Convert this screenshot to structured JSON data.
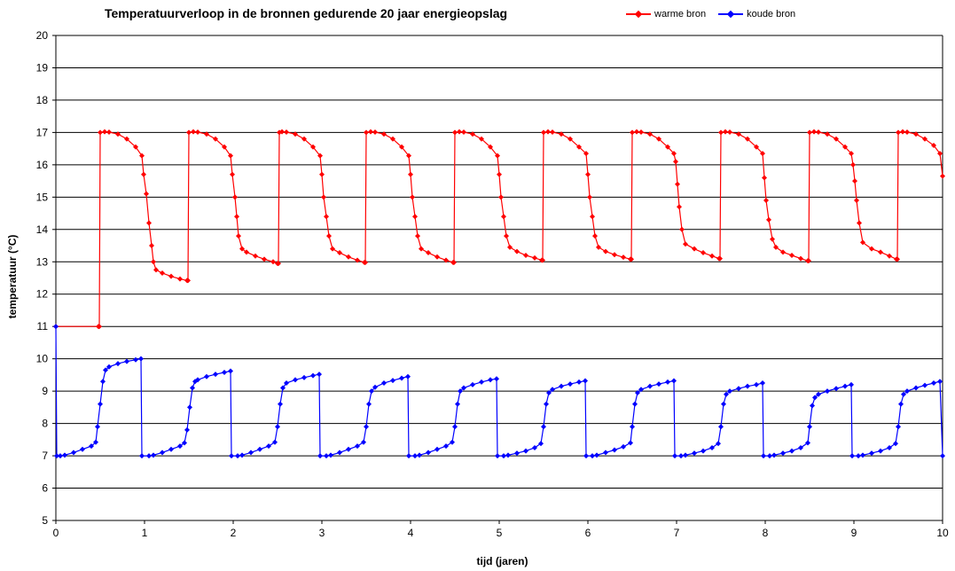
{
  "chart_data": {
    "type": "line",
    "title": "Temperatuurverloop in de bronnen  gedurende  20 jaar energieopslag",
    "xlabel": "tijd (jaren)",
    "ylabel": "temperatuur (°C)",
    "xlim": [
      0,
      10
    ],
    "ylim": [
      5,
      20
    ],
    "xticks": [
      "0",
      "1",
      "2",
      "3",
      "4",
      "5",
      "6",
      "7",
      "8",
      "9",
      "10"
    ],
    "yticks": [
      "5",
      "6",
      "7",
      "8",
      "9",
      "10",
      "11",
      "12",
      "13",
      "14",
      "15",
      "16",
      "17",
      "18",
      "19",
      "20"
    ],
    "grid": "horizontal",
    "legend_position": "top-right",
    "series": [
      {
        "name": "warme bron",
        "color": "#ff0000",
        "marker": "diamond",
        "points": [
          [
            0,
            11
          ],
          [
            0.48,
            11
          ],
          [
            0.49,
            11
          ],
          [
            0.5,
            17
          ],
          [
            0.55,
            17.02
          ],
          [
            0.6,
            17.01
          ],
          [
            0.7,
            16.95
          ],
          [
            0.8,
            16.8
          ],
          [
            0.9,
            16.55
          ],
          [
            0.97,
            16.28
          ],
          [
            0.99,
            15.7
          ],
          [
            1.02,
            15.1
          ],
          [
            1.05,
            14.2
          ],
          [
            1.08,
            13.5
          ],
          [
            1.1,
            13.0
          ],
          [
            1.13,
            12.75
          ],
          [
            1.2,
            12.65
          ],
          [
            1.3,
            12.55
          ],
          [
            1.4,
            12.47
          ],
          [
            1.48,
            12.42
          ],
          [
            1.49,
            12.42
          ],
          [
            1.5,
            17
          ],
          [
            1.55,
            17.02
          ],
          [
            1.6,
            17.01
          ],
          [
            1.7,
            16.95
          ],
          [
            1.8,
            16.8
          ],
          [
            1.9,
            16.55
          ],
          [
            1.97,
            16.28
          ],
          [
            1.99,
            15.7
          ],
          [
            2.02,
            15.0
          ],
          [
            2.04,
            14.4
          ],
          [
            2.06,
            13.8
          ],
          [
            2.1,
            13.4
          ],
          [
            2.15,
            13.3
          ],
          [
            2.25,
            13.18
          ],
          [
            2.35,
            13.08
          ],
          [
            2.45,
            13.0
          ],
          [
            2.5,
            12.95
          ],
          [
            2.51,
            12.95
          ],
          [
            2.52,
            17
          ],
          [
            2.55,
            17.02
          ],
          [
            2.6,
            17.01
          ],
          [
            2.7,
            16.95
          ],
          [
            2.8,
            16.8
          ],
          [
            2.9,
            16.55
          ],
          [
            2.98,
            16.28
          ],
          [
            3.0,
            15.7
          ],
          [
            3.02,
            15.0
          ],
          [
            3.05,
            14.4
          ],
          [
            3.08,
            13.8
          ],
          [
            3.12,
            13.4
          ],
          [
            3.2,
            13.28
          ],
          [
            3.3,
            13.15
          ],
          [
            3.4,
            13.05
          ],
          [
            3.48,
            12.98
          ],
          [
            3.49,
            12.98
          ],
          [
            3.5,
            17
          ],
          [
            3.55,
            17.02
          ],
          [
            3.6,
            17.01
          ],
          [
            3.7,
            16.95
          ],
          [
            3.8,
            16.8
          ],
          [
            3.9,
            16.55
          ],
          [
            3.98,
            16.28
          ],
          [
            4.0,
            15.7
          ],
          [
            4.02,
            15.0
          ],
          [
            4.05,
            14.4
          ],
          [
            4.08,
            13.8
          ],
          [
            4.12,
            13.4
          ],
          [
            4.2,
            13.28
          ],
          [
            4.3,
            13.15
          ],
          [
            4.4,
            13.05
          ],
          [
            4.48,
            12.98
          ],
          [
            4.49,
            12.98
          ],
          [
            4.5,
            17
          ],
          [
            4.55,
            17.02
          ],
          [
            4.6,
            17.01
          ],
          [
            4.7,
            16.95
          ],
          [
            4.8,
            16.8
          ],
          [
            4.9,
            16.55
          ],
          [
            4.98,
            16.28
          ],
          [
            5.0,
            15.7
          ],
          [
            5.02,
            15.0
          ],
          [
            5.05,
            14.4
          ],
          [
            5.08,
            13.8
          ],
          [
            5.12,
            13.45
          ],
          [
            5.2,
            13.32
          ],
          [
            5.3,
            13.2
          ],
          [
            5.4,
            13.12
          ],
          [
            5.48,
            13.05
          ],
          [
            5.49,
            13.05
          ],
          [
            5.5,
            17
          ],
          [
            5.55,
            17.02
          ],
          [
            5.6,
            17.01
          ],
          [
            5.7,
            16.95
          ],
          [
            5.8,
            16.8
          ],
          [
            5.9,
            16.55
          ],
          [
            5.98,
            16.35
          ],
          [
            6.0,
            15.7
          ],
          [
            6.02,
            15.0
          ],
          [
            6.05,
            14.4
          ],
          [
            6.08,
            13.8
          ],
          [
            6.12,
            13.45
          ],
          [
            6.2,
            13.32
          ],
          [
            6.3,
            13.22
          ],
          [
            6.4,
            13.14
          ],
          [
            6.48,
            13.08
          ],
          [
            6.49,
            13.08
          ],
          [
            6.5,
            17
          ],
          [
            6.55,
            17.02
          ],
          [
            6.6,
            17.01
          ],
          [
            6.7,
            16.95
          ],
          [
            6.8,
            16.8
          ],
          [
            6.9,
            16.55
          ],
          [
            6.97,
            16.35
          ],
          [
            6.99,
            16.1
          ],
          [
            7.01,
            15.4
          ],
          [
            7.03,
            14.7
          ],
          [
            7.06,
            14.0
          ],
          [
            7.1,
            13.55
          ],
          [
            7.2,
            13.4
          ],
          [
            7.3,
            13.28
          ],
          [
            7.4,
            13.18
          ],
          [
            7.48,
            13.1
          ],
          [
            7.49,
            13.1
          ],
          [
            7.5,
            17
          ],
          [
            7.55,
            17.02
          ],
          [
            7.6,
            17.01
          ],
          [
            7.7,
            16.95
          ],
          [
            7.8,
            16.8
          ],
          [
            7.9,
            16.55
          ],
          [
            7.97,
            16.35
          ],
          [
            7.99,
            15.6
          ],
          [
            8.01,
            14.9
          ],
          [
            8.04,
            14.3
          ],
          [
            8.08,
            13.7
          ],
          [
            8.12,
            13.45
          ],
          [
            8.2,
            13.3
          ],
          [
            8.3,
            13.2
          ],
          [
            8.4,
            13.1
          ],
          [
            8.48,
            13.03
          ],
          [
            8.49,
            13.03
          ],
          [
            8.5,
            17
          ],
          [
            8.55,
            17.02
          ],
          [
            8.6,
            17.01
          ],
          [
            8.7,
            16.95
          ],
          [
            8.8,
            16.8
          ],
          [
            8.9,
            16.55
          ],
          [
            8.97,
            16.35
          ],
          [
            8.99,
            16.0
          ],
          [
            9.01,
            15.5
          ],
          [
            9.03,
            14.9
          ],
          [
            9.06,
            14.2
          ],
          [
            9.1,
            13.6
          ],
          [
            9.2,
            13.4
          ],
          [
            9.3,
            13.3
          ],
          [
            9.4,
            13.18
          ],
          [
            9.48,
            13.08
          ],
          [
            9.49,
            13.08
          ],
          [
            9.5,
            17
          ],
          [
            9.55,
            17.02
          ],
          [
            9.6,
            17.01
          ],
          [
            9.7,
            16.95
          ],
          [
            9.8,
            16.8
          ],
          [
            9.9,
            16.6
          ],
          [
            9.97,
            16.35
          ],
          [
            10.0,
            15.65
          ]
        ]
      },
      {
        "name": "koude bron",
        "color": "#0000ff",
        "marker": "diamond",
        "points": [
          [
            0,
            11
          ],
          [
            0.01,
            7
          ],
          [
            0.05,
            7.0
          ],
          [
            0.1,
            7.02
          ],
          [
            0.2,
            7.1
          ],
          [
            0.3,
            7.2
          ],
          [
            0.4,
            7.3
          ],
          [
            0.45,
            7.42
          ],
          [
            0.47,
            7.9
          ],
          [
            0.5,
            8.6
          ],
          [
            0.53,
            9.3
          ],
          [
            0.56,
            9.65
          ],
          [
            0.6,
            9.75
          ],
          [
            0.7,
            9.85
          ],
          [
            0.8,
            9.92
          ],
          [
            0.9,
            9.97
          ],
          [
            0.96,
            10.0
          ],
          [
            0.97,
            7
          ],
          [
            1.05,
            7.0
          ],
          [
            1.1,
            7.02
          ],
          [
            1.2,
            7.1
          ],
          [
            1.3,
            7.2
          ],
          [
            1.4,
            7.3
          ],
          [
            1.45,
            7.4
          ],
          [
            1.48,
            7.8
          ],
          [
            1.51,
            8.5
          ],
          [
            1.54,
            9.1
          ],
          [
            1.57,
            9.3
          ],
          [
            1.6,
            9.35
          ],
          [
            1.7,
            9.45
          ],
          [
            1.8,
            9.52
          ],
          [
            1.9,
            9.58
          ],
          [
            1.97,
            9.62
          ],
          [
            1.98,
            7
          ],
          [
            2.05,
            7.0
          ],
          [
            2.1,
            7.02
          ],
          [
            2.2,
            7.1
          ],
          [
            2.3,
            7.2
          ],
          [
            2.4,
            7.3
          ],
          [
            2.47,
            7.42
          ],
          [
            2.5,
            7.9
          ],
          [
            2.53,
            8.6
          ],
          [
            2.56,
            9.1
          ],
          [
            2.6,
            9.25
          ],
          [
            2.7,
            9.35
          ],
          [
            2.8,
            9.42
          ],
          [
            2.9,
            9.48
          ],
          [
            2.97,
            9.52
          ],
          [
            2.98,
            7
          ],
          [
            3.05,
            7.0
          ],
          [
            3.1,
            7.02
          ],
          [
            3.2,
            7.1
          ],
          [
            3.3,
            7.2
          ],
          [
            3.4,
            7.3
          ],
          [
            3.47,
            7.42
          ],
          [
            3.5,
            7.9
          ],
          [
            3.53,
            8.6
          ],
          [
            3.56,
            9.0
          ],
          [
            3.6,
            9.12
          ],
          [
            3.7,
            9.25
          ],
          [
            3.8,
            9.33
          ],
          [
            3.9,
            9.4
          ],
          [
            3.97,
            9.45
          ],
          [
            3.98,
            7
          ],
          [
            4.05,
            7.0
          ],
          [
            4.1,
            7.02
          ],
          [
            4.2,
            7.1
          ],
          [
            4.3,
            7.2
          ],
          [
            4.4,
            7.3
          ],
          [
            4.47,
            7.42
          ],
          [
            4.5,
            7.9
          ],
          [
            4.53,
            8.6
          ],
          [
            4.56,
            9.0
          ],
          [
            4.6,
            9.1
          ],
          [
            4.7,
            9.2
          ],
          [
            4.8,
            9.28
          ],
          [
            4.9,
            9.35
          ],
          [
            4.97,
            9.38
          ],
          [
            4.98,
            7
          ],
          [
            5.05,
            7.0
          ],
          [
            5.1,
            7.02
          ],
          [
            5.2,
            7.08
          ],
          [
            5.3,
            7.15
          ],
          [
            5.4,
            7.25
          ],
          [
            5.47,
            7.38
          ],
          [
            5.5,
            7.9
          ],
          [
            5.53,
            8.6
          ],
          [
            5.56,
            8.95
          ],
          [
            5.6,
            9.05
          ],
          [
            5.7,
            9.15
          ],
          [
            5.8,
            9.22
          ],
          [
            5.9,
            9.28
          ],
          [
            5.97,
            9.32
          ],
          [
            5.98,
            7
          ],
          [
            6.05,
            7.0
          ],
          [
            6.1,
            7.02
          ],
          [
            6.2,
            7.1
          ],
          [
            6.3,
            7.18
          ],
          [
            6.4,
            7.28
          ],
          [
            6.48,
            7.4
          ],
          [
            6.5,
            7.9
          ],
          [
            6.53,
            8.6
          ],
          [
            6.56,
            8.95
          ],
          [
            6.6,
            9.05
          ],
          [
            6.7,
            9.15
          ],
          [
            6.8,
            9.22
          ],
          [
            6.9,
            9.28
          ],
          [
            6.97,
            9.32
          ],
          [
            6.98,
            7
          ],
          [
            7.05,
            7.0
          ],
          [
            7.1,
            7.02
          ],
          [
            7.2,
            7.08
          ],
          [
            7.3,
            7.15
          ],
          [
            7.4,
            7.25
          ],
          [
            7.47,
            7.38
          ],
          [
            7.5,
            7.9
          ],
          [
            7.53,
            8.6
          ],
          [
            7.56,
            8.9
          ],
          [
            7.6,
            9.0
          ],
          [
            7.7,
            9.08
          ],
          [
            7.8,
            9.15
          ],
          [
            7.9,
            9.2
          ],
          [
            7.97,
            9.25
          ],
          [
            7.98,
            7
          ],
          [
            8.05,
            7.0
          ],
          [
            8.1,
            7.02
          ],
          [
            8.2,
            7.08
          ],
          [
            8.3,
            7.15
          ],
          [
            8.4,
            7.25
          ],
          [
            8.48,
            7.4
          ],
          [
            8.5,
            7.9
          ],
          [
            8.53,
            8.55
          ],
          [
            8.56,
            8.8
          ],
          [
            8.6,
            8.9
          ],
          [
            8.7,
            9.0
          ],
          [
            8.8,
            9.08
          ],
          [
            8.9,
            9.15
          ],
          [
            8.97,
            9.2
          ],
          [
            8.98,
            7
          ],
          [
            9.05,
            7.0
          ],
          [
            9.1,
            7.02
          ],
          [
            9.2,
            7.08
          ],
          [
            9.3,
            7.15
          ],
          [
            9.4,
            7.25
          ],
          [
            9.47,
            7.38
          ],
          [
            9.5,
            7.9
          ],
          [
            9.53,
            8.6
          ],
          [
            9.56,
            8.9
          ],
          [
            9.6,
            9.0
          ],
          [
            9.7,
            9.1
          ],
          [
            9.8,
            9.18
          ],
          [
            9.9,
            9.25
          ],
          [
            9.97,
            9.3
          ],
          [
            10.0,
            7.0
          ]
        ]
      }
    ]
  }
}
